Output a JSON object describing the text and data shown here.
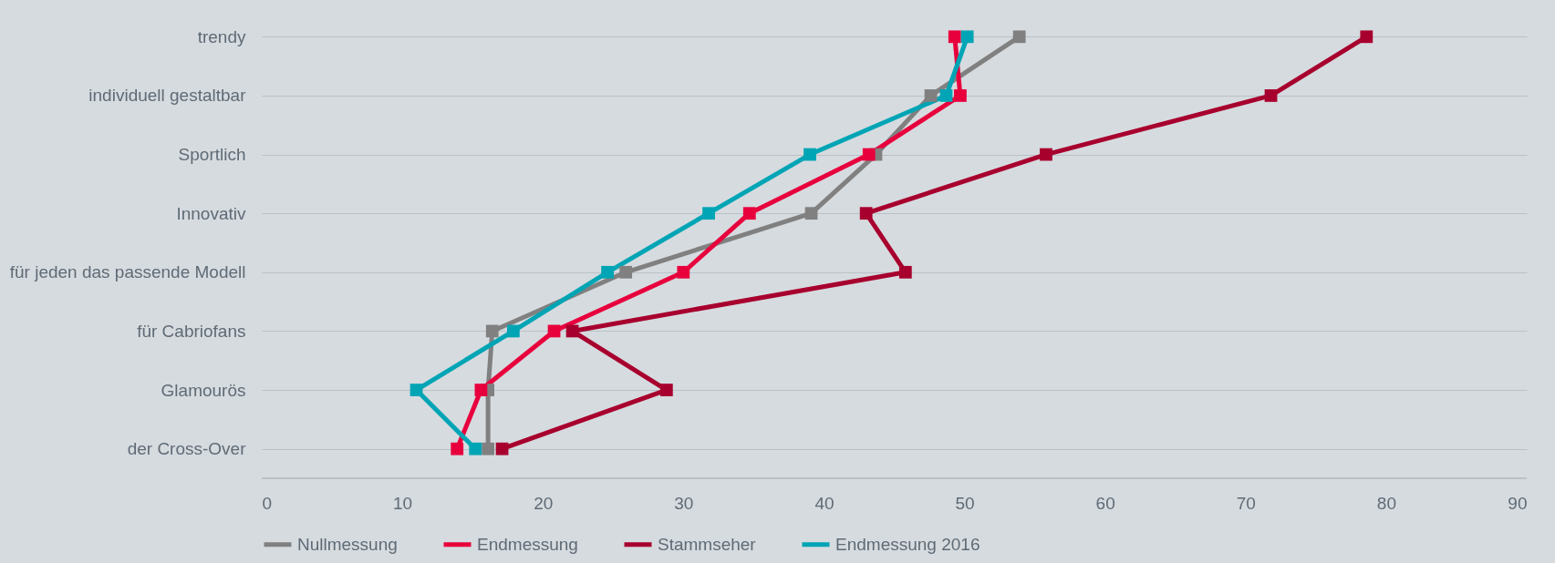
{
  "chart_data": {
    "type": "line",
    "orientation": "horizontal",
    "categories": [
      "trendy",
      "individuell gestaltbar",
      "Sportlich",
      "Innovativ",
      "für jeden das passende Modell",
      "für Cabriofans",
      "Glamourös",
      "der Cross-Over"
    ],
    "series": [
      {
        "name": "Nullmessung",
        "color": "#808080",
        "values": [
          53.9,
          47.6,
          43.7,
          39.1,
          25.9,
          16.4,
          16.1,
          16.1
        ]
      },
      {
        "name": "Endmessung",
        "color": "#e8003d",
        "values": [
          49.3,
          49.7,
          43.2,
          34.7,
          30.0,
          20.8,
          15.6,
          13.9
        ]
      },
      {
        "name": "Stammseher",
        "color": "#a8002e",
        "values": [
          78.6,
          71.8,
          55.8,
          43.0,
          45.8,
          22.1,
          28.8,
          17.1
        ]
      },
      {
        "name": "Endmessung 2016",
        "color": "#00a5b5",
        "values": [
          50.2,
          48.7,
          39.0,
          31.8,
          24.6,
          17.9,
          11.0,
          15.2
        ]
      }
    ],
    "xlim": [
      0,
      90
    ],
    "xticks": [
      0,
      10,
      20,
      30,
      40,
      50,
      60,
      70,
      80,
      90
    ],
    "grid": "y",
    "legend": "bottom",
    "marker": "square",
    "line_style": "solid"
  }
}
